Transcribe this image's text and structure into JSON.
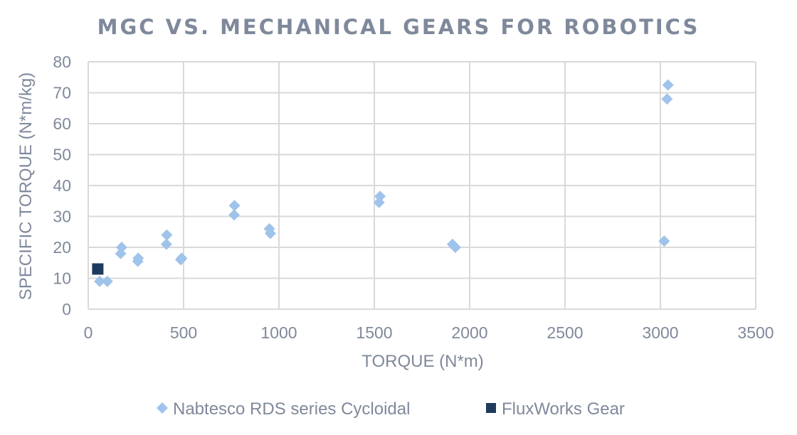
{
  "colors": {
    "text": "#7f899b",
    "grid": "#d9d9d9",
    "nabtesco": "#9fc3ea",
    "fluxworks": "#1f3a5f"
  },
  "legend": {
    "position": "bottom",
    "items": [
      {
        "label": "Nabtesco RDS series Cycloidal",
        "marker": "diamond-icon"
      },
      {
        "label": "FluxWorks Gear",
        "marker": "square-icon"
      }
    ]
  },
  "chart_data": {
    "type": "scatter",
    "title": "MGC VS. MECHANICAL GEARS FOR ROBOTICS",
    "xlabel": "TORQUE (N*m)",
    "ylabel": "SPECIFIC TORQUE (N*m/kg)",
    "xlim": [
      0,
      3500
    ],
    "ylim": [
      0,
      80
    ],
    "xticks": [
      "0",
      "500",
      "1000",
      "1500",
      "2000",
      "2500",
      "3000",
      "3500"
    ],
    "yticks": [
      "0",
      "10",
      "20",
      "30",
      "40",
      "50",
      "60",
      "70",
      "80"
    ],
    "grid": true,
    "series": [
      {
        "name": "Nabtesco RDS series Cycloidal",
        "marker": "diamond",
        "points": [
          {
            "x": 60,
            "y": 9
          },
          {
            "x": 100,
            "y": 9
          },
          {
            "x": 170,
            "y": 18
          },
          {
            "x": 175,
            "y": 20
          },
          {
            "x": 260,
            "y": 15.5
          },
          {
            "x": 262,
            "y": 16.5
          },
          {
            "x": 410,
            "y": 21
          },
          {
            "x": 412,
            "y": 24
          },
          {
            "x": 485,
            "y": 16
          },
          {
            "x": 490,
            "y": 16.5
          },
          {
            "x": 765,
            "y": 30.5
          },
          {
            "x": 767,
            "y": 33.5
          },
          {
            "x": 950,
            "y": 26
          },
          {
            "x": 955,
            "y": 24.5
          },
          {
            "x": 1525,
            "y": 34.5
          },
          {
            "x": 1530,
            "y": 36.5
          },
          {
            "x": 1910,
            "y": 21
          },
          {
            "x": 1925,
            "y": 20
          },
          {
            "x": 3020,
            "y": 22
          },
          {
            "x": 3035,
            "y": 68
          },
          {
            "x": 3040,
            "y": 72.5
          }
        ]
      },
      {
        "name": "FluxWorks Gear",
        "marker": "square",
        "points": [
          {
            "x": 50,
            "y": 13
          }
        ]
      }
    ]
  }
}
